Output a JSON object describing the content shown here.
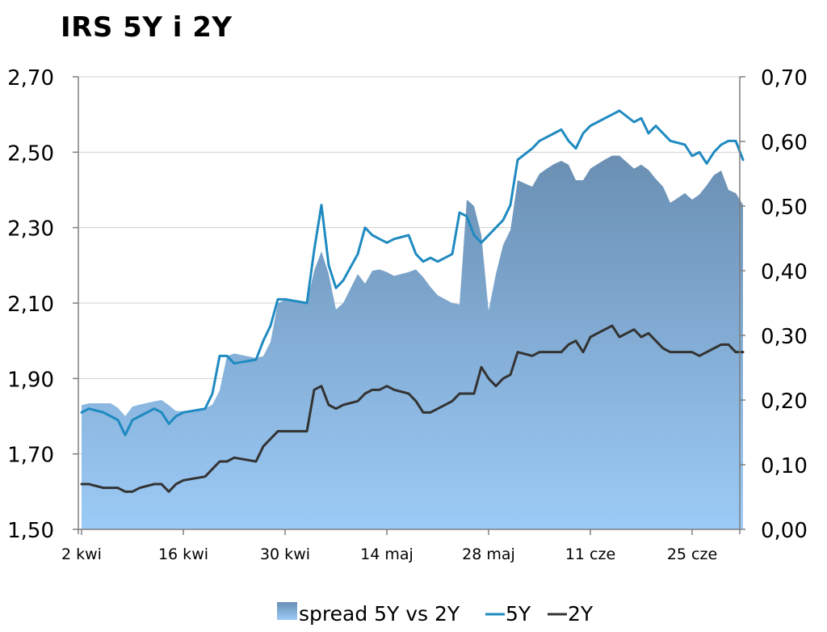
{
  "chart_data": {
    "type": "line",
    "title": "IRS 5Y i 2Y",
    "x_tick_labels": [
      "2 kwi",
      "16 kwi",
      "30 kwi",
      "14 maj",
      "28 maj",
      "11 cze",
      "25 cze"
    ],
    "x_tick_days": [
      0,
      14,
      28,
      42,
      56,
      70,
      84
    ],
    "x": [
      0,
      1,
      3,
      4,
      5,
      6,
      7,
      8,
      10,
      11,
      12,
      13,
      14,
      17,
      18,
      19,
      20,
      21,
      24,
      25,
      26,
      27,
      28,
      31,
      32,
      33,
      34,
      35,
      36,
      38,
      39,
      40,
      41,
      42,
      43,
      45,
      46,
      47,
      48,
      49,
      51,
      52,
      53,
      54,
      55,
      56,
      57,
      58,
      59,
      60,
      62,
      63,
      64,
      65,
      66,
      67,
      68,
      69,
      70,
      71,
      72,
      73,
      74,
      76,
      77,
      78,
      79,
      80,
      81,
      83,
      84,
      85,
      86,
      87,
      88,
      89,
      90,
      91
    ],
    "y_left_range": [
      1.5,
      2.7
    ],
    "y_left_ticks": [
      "1,50",
      "1,70",
      "1,90",
      "2,10",
      "2,30",
      "2,50",
      "2,70"
    ],
    "y_right_range": [
      0,
      0.7
    ],
    "y_right_ticks": [
      "0,00",
      "0,10",
      "0,20",
      "0,30",
      "0,40",
      "0,50",
      "0,60",
      "0,70"
    ],
    "grid": "horizontal",
    "legend_position": "bottom",
    "colors": {
      "spread_top": "#6a8fb3",
      "spread_bottom": "#9ccbf7",
      "line_5y": "#1f8ac0",
      "line_2y": "#333333",
      "grid": "#d0d0d0"
    },
    "series": [
      {
        "name": "spread 5Y vs 2Y",
        "kind": "area",
        "axis": "right",
        "values": [
          0.192,
          0.195,
          0.195,
          0.195,
          0.188,
          0.175,
          0.19,
          0.193,
          0.198,
          0.2,
          0.192,
          0.183,
          0.183,
          0.187,
          0.193,
          0.215,
          0.268,
          0.272,
          0.265,
          0.268,
          0.29,
          0.35,
          0.355,
          0.35,
          0.4,
          0.43,
          0.395,
          0.34,
          0.35,
          0.395,
          0.38,
          0.4,
          0.402,
          0.398,
          0.392,
          0.398,
          0.402,
          0.39,
          0.375,
          0.362,
          0.35,
          0.348,
          0.51,
          0.5,
          0.455,
          0.338,
          0.395,
          0.44,
          0.463,
          0.54,
          0.53,
          0.55,
          0.558,
          0.565,
          0.57,
          0.564,
          0.54,
          0.54,
          0.558,
          0.565,
          0.572,
          0.578,
          0.578,
          0.558,
          0.564,
          0.556,
          0.542,
          0.53,
          0.505,
          0.52,
          0.51,
          0.518,
          0.532,
          0.548,
          0.555,
          0.525,
          0.52,
          0.502
        ]
      },
      {
        "name": "5Y",
        "kind": "line",
        "axis": "left",
        "values": [
          1.81,
          1.82,
          1.81,
          1.8,
          1.79,
          1.75,
          1.79,
          1.8,
          1.82,
          1.81,
          1.78,
          1.8,
          1.81,
          1.82,
          1.86,
          1.96,
          1.96,
          1.94,
          1.95,
          2.0,
          2.04,
          2.11,
          2.11,
          2.1,
          2.24,
          2.36,
          2.2,
          2.14,
          2.16,
          2.23,
          2.3,
          2.28,
          2.27,
          2.26,
          2.27,
          2.28,
          2.23,
          2.21,
          2.22,
          2.21,
          2.23,
          2.34,
          2.33,
          2.28,
          2.26,
          2.28,
          2.3,
          2.32,
          2.36,
          2.48,
          2.51,
          2.53,
          2.54,
          2.55,
          2.56,
          2.53,
          2.51,
          2.55,
          2.57,
          2.58,
          2.59,
          2.6,
          2.61,
          2.58,
          2.59,
          2.55,
          2.57,
          2.55,
          2.53,
          2.52,
          2.49,
          2.5,
          2.47,
          2.5,
          2.52,
          2.53,
          2.53,
          2.48
        ]
      },
      {
        "name": "2Y",
        "kind": "line",
        "axis": "left",
        "values": [
          1.62,
          1.62,
          1.61,
          1.61,
          1.61,
          1.6,
          1.6,
          1.61,
          1.62,
          1.62,
          1.6,
          1.62,
          1.63,
          1.64,
          1.66,
          1.68,
          1.68,
          1.69,
          1.68,
          1.72,
          1.74,
          1.76,
          1.76,
          1.76,
          1.87,
          1.88,
          1.83,
          1.82,
          1.83,
          1.84,
          1.86,
          1.87,
          1.87,
          1.88,
          1.87,
          1.86,
          1.84,
          1.81,
          1.81,
          1.82,
          1.84,
          1.86,
          1.86,
          1.86,
          1.93,
          1.9,
          1.88,
          1.9,
          1.91,
          1.97,
          1.96,
          1.97,
          1.97,
          1.97,
          1.97,
          1.99,
          2.0,
          1.97,
          2.01,
          2.02,
          2.03,
          2.04,
          2.01,
          2.03,
          2.01,
          2.02,
          2.0,
          1.98,
          1.97,
          1.97,
          1.97,
          1.96,
          1.97,
          1.98,
          1.99,
          1.99,
          1.97,
          1.97
        ]
      }
    ]
  }
}
